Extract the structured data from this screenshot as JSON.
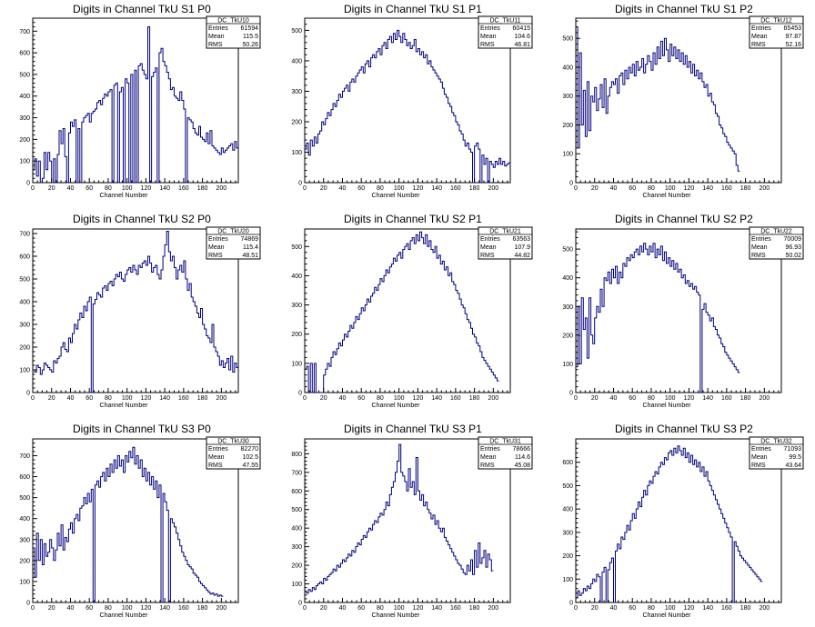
{
  "line_color": "#000080",
  "chart_data": [
    {
      "type": "histogram",
      "title": "Digits in Channel TkU S1 P0",
      "xlabel": "Channel Number",
      "ylabel": "",
      "xlim": [
        0,
        218
      ],
      "ylim": [
        0,
        760
      ],
      "xticks": [
        0,
        20,
        40,
        60,
        80,
        100,
        120,
        140,
        160,
        180,
        200
      ],
      "yticks": [
        0,
        100,
        200,
        300,
        400,
        500,
        600,
        700
      ],
      "stats": {
        "name": "DC_TkU10",
        "entries_label": "Entries",
        "entries": "61594",
        "mean_label": "Mean",
        "mean": "115.5",
        "rms_label": "RMS",
        "rms": "50.26"
      },
      "bin_width": 2,
      "values": [
        60,
        110,
        30,
        100,
        0,
        20,
        140,
        60,
        140,
        100,
        0,
        110,
        0,
        130,
        240,
        180,
        250,
        120,
        0,
        230,
        280,
        260,
        290,
        0,
        250,
        0,
        280,
        300,
        310,
        320,
        280,
        320,
        330,
        340,
        370,
        380,
        360,
        390,
        410,
        400,
        420,
        430,
        0,
        450,
        460,
        0,
        420,
        440,
        0,
        480,
        460,
        0,
        500,
        0,
        520,
        0,
        540,
        550,
        520,
        500,
        480,
        720,
        0,
        490,
        510,
        530,
        0,
        600,
        620,
        560,
        540,
        510,
        480,
        430,
        440,
        400,
        390,
        380,
        420,
        380,
        340,
        0,
        300,
        290,
        280,
        250,
        230,
        220,
        260,
        210,
        200,
        190,
        230,
        180,
        240,
        170,
        160,
        150,
        140,
        130,
        160,
        140,
        150,
        160,
        170,
        180,
        150,
        190,
        160
      ]
    },
    {
      "type": "histogram",
      "title": "Digits in Channel TkU S1 P1",
      "xlabel": "Channel Number",
      "ylabel": "",
      "xlim": [
        0,
        218
      ],
      "ylim": [
        0,
        540
      ],
      "xticks": [
        0,
        20,
        40,
        60,
        80,
        100,
        120,
        140,
        160,
        180,
        200
      ],
      "yticks": [
        0,
        100,
        200,
        300,
        400,
        500
      ],
      "stats": {
        "name": "DC_TkU11",
        "entries_label": "Entries",
        "entries": "60415",
        "mean_label": "Mean",
        "mean": "104.6",
        "rms_label": "RMS",
        "rms": "46.81"
      },
      "bin_width": 2,
      "values": [
        110,
        130,
        90,
        140,
        120,
        150,
        130,
        160,
        170,
        200,
        190,
        210,
        230,
        220,
        240,
        260,
        250,
        270,
        290,
        280,
        300,
        310,
        320,
        300,
        330,
        340,
        330,
        350,
        360,
        370,
        380,
        360,
        390,
        400,
        380,
        410,
        420,
        410,
        430,
        440,
        420,
        450,
        460,
        440,
        470,
        480,
        460,
        490,
        470,
        500,
        480,
        460,
        490,
        470,
        450,
        460,
        440,
        450,
        470,
        430,
        440,
        420,
        430,
        410,
        420,
        390,
        400,
        380,
        370,
        360,
        350,
        340,
        330,
        310,
        290,
        280,
        260,
        250,
        230,
        220,
        200,
        190,
        170,
        160,
        140,
        120,
        130,
        110,
        100,
        0,
        120,
        130,
        110,
        0,
        90,
        60,
        80,
        0,
        70,
        60,
        50,
        70,
        60,
        80,
        60,
        70,
        55,
        60,
        65
      ]
    },
    {
      "type": "histogram",
      "title": "Digits in Channel TkU S1 P2",
      "xlabel": "Channel Number",
      "ylabel": "",
      "xlim": [
        0,
        218
      ],
      "ylim": [
        0,
        570
      ],
      "xticks": [
        0,
        20,
        40,
        60,
        80,
        100,
        120,
        140,
        160,
        180,
        200
      ],
      "yticks": [
        0,
        100,
        200,
        300,
        400,
        500
      ],
      "stats": {
        "name": "DC_TkU12",
        "entries_label": "Entries",
        "entries": "65453",
        "mean_label": "Mean",
        "mean": "97.87",
        "rms_label": "RMS",
        "rms": "52.16"
      },
      "bin_width": 2,
      "values": [
        540,
        120,
        450,
        200,
        320,
        160,
        350,
        180,
        300,
        280,
        330,
        250,
        290,
        340,
        260,
        360,
        240,
        300,
        330,
        350,
        340,
        360,
        310,
        370,
        380,
        340,
        390,
        360,
        400,
        380,
        410,
        370,
        420,
        390,
        400,
        430,
        380,
        410,
        440,
        420,
        390,
        450,
        410,
        470,
        430,
        490,
        440,
        500,
        460,
        420,
        480,
        440,
        470,
        430,
        460,
        420,
        450,
        410,
        440,
        400,
        420,
        380,
        410,
        370,
        390,
        360,
        380,
        350,
        330,
        340,
        300,
        310,
        280,
        270,
        240,
        230,
        200,
        190,
        170,
        160,
        140,
        130,
        120,
        110,
        100,
        60,
        40
      ]
    },
    {
      "type": "histogram",
      "title": "Digits in Channel TkU S2 P0",
      "xlabel": "Channel Number",
      "ylabel": "",
      "xlim": [
        0,
        218
      ],
      "ylim": [
        0,
        720
      ],
      "xticks": [
        0,
        20,
        40,
        60,
        80,
        100,
        120,
        140,
        160,
        180,
        200
      ],
      "yticks": [
        0,
        100,
        200,
        300,
        400,
        500,
        600,
        700
      ],
      "stats": {
        "name": "DC_TkU20",
        "entries_label": "Entries",
        "entries": "74869",
        "mean_label": "Mean",
        "mean": "115.4",
        "rms_label": "RMS",
        "rms": "48.51"
      },
      "bin_width": 2,
      "values": [
        100,
        90,
        120,
        110,
        80,
        100,
        130,
        120,
        110,
        100,
        90,
        140,
        130,
        150,
        160,
        200,
        220,
        190,
        180,
        240,
        220,
        260,
        300,
        280,
        320,
        350,
        330,
        380,
        360,
        400,
        420,
        0,
        390,
        410,
        440,
        430,
        420,
        460,
        470,
        450,
        480,
        490,
        470,
        500,
        520,
        510,
        530,
        500,
        490,
        520,
        540,
        550,
        530,
        560,
        540,
        520,
        560,
        550,
        570,
        580,
        560,
        600,
        570,
        530,
        550,
        560,
        520,
        500,
        540,
        600,
        650,
        710,
        620,
        580,
        600,
        550,
        500,
        540,
        560,
        530,
        580,
        500,
        450,
        480,
        420,
        400,
        380,
        350,
        330,
        370,
        300,
        280,
        250,
        240,
        220,
        300,
        200,
        180,
        160,
        120,
        140,
        110,
        130,
        150,
        100,
        160,
        90,
        130,
        110
      ]
    },
    {
      "type": "histogram",
      "title": "Digits in Channel TkU S2 P1",
      "xlabel": "Channel Number",
      "ylabel": "",
      "xlim": [
        0,
        218
      ],
      "ylim": [
        0,
        560
      ],
      "xticks": [
        0,
        20,
        40,
        60,
        80,
        100,
        120,
        140,
        160,
        180,
        200
      ],
      "yticks": [
        0,
        100,
        200,
        300,
        400,
        500
      ],
      "stats": {
        "name": "DC_TkU21",
        "entries_label": "Entries",
        "entries": "63563",
        "mean_label": "Mean",
        "mean": "107.9",
        "rms_label": "RMS",
        "rms": "44.82"
      },
      "bin_width": 2,
      "values": [
        80,
        90,
        0,
        100,
        0,
        100,
        0,
        0,
        0,
        0,
        60,
        80,
        100,
        90,
        120,
        140,
        130,
        150,
        170,
        160,
        180,
        200,
        190,
        210,
        230,
        220,
        240,
        260,
        250,
        270,
        290,
        280,
        300,
        320,
        310,
        330,
        340,
        360,
        350,
        370,
        390,
        380,
        400,
        420,
        410,
        430,
        440,
        460,
        450,
        470,
        480,
        460,
        490,
        500,
        510,
        490,
        520,
        530,
        510,
        540,
        520,
        550,
        530,
        510,
        540,
        500,
        520,
        490,
        480,
        500,
        460,
        470,
        440,
        450,
        420,
        430,
        400,
        410,
        380,
        370,
        350,
        340,
        320,
        300,
        290,
        270,
        250,
        240,
        220,
        200,
        190,
        170,
        160,
        140,
        120,
        110,
        100,
        90,
        80,
        70,
        60,
        50,
        40
      ]
    },
    {
      "type": "histogram",
      "title": "Digits in Channel TkU S2 P2",
      "xlabel": "Channel Number",
      "ylabel": "",
      "xlim": [
        0,
        218
      ],
      "ylim": [
        0,
        570
      ],
      "xticks": [
        0,
        20,
        40,
        60,
        80,
        100,
        120,
        140,
        160,
        180,
        200
      ],
      "yticks": [
        0,
        100,
        200,
        300,
        400,
        500
      ],
      "stats": {
        "name": "DC_TkU22",
        "entries_label": "Entries",
        "entries": "70009",
        "mean_label": "Mean",
        "mean": "96.93",
        "rms_label": "RMS",
        "rms": "50.02"
      },
      "bin_width": 2,
      "values": [
        90,
        300,
        100,
        330,
        220,
        260,
        120,
        330,
        200,
        170,
        260,
        300,
        280,
        360,
        300,
        400,
        390,
        420,
        380,
        430,
        400,
        440,
        380,
        420,
        400,
        450,
        440,
        470,
        460,
        480,
        470,
        490,
        500,
        480,
        510,
        490,
        520,
        500,
        480,
        510,
        490,
        520,
        470,
        500,
        480,
        510,
        460,
        490,
        450,
        470,
        440,
        460,
        430,
        450,
        420,
        430,
        400,
        410,
        380,
        390,
        370,
        380,
        360,
        370,
        350,
        340,
        0,
        290,
        310,
        280,
        270,
        250,
        260,
        230,
        220,
        200,
        190,
        170,
        160,
        140,
        130,
        120,
        110,
        100,
        90,
        80,
        70
      ]
    },
    {
      "type": "histogram",
      "title": "Digits in Channel TkU S3 P0",
      "xlabel": "Channel Number",
      "ylabel": "",
      "xlim": [
        0,
        218
      ],
      "ylim": [
        0,
        780
      ],
      "xticks": [
        0,
        20,
        40,
        60,
        80,
        100,
        120,
        140,
        160,
        180,
        200
      ],
      "yticks": [
        0,
        100,
        200,
        300,
        400,
        500,
        600,
        700
      ],
      "stats": {
        "name": "DC_TkU30",
        "entries_label": "Entries",
        "entries": "82270",
        "mean_label": "Mean",
        "mean": "102.5",
        "rms_label": "RMS",
        "rms": "47.55"
      },
      "bin_width": 2,
      "values": [
        260,
        120,
        330,
        200,
        300,
        180,
        280,
        220,
        240,
        300,
        260,
        200,
        250,
        330,
        270,
        370,
        250,
        310,
        290,
        350,
        380,
        330,
        400,
        420,
        390,
        450,
        460,
        500,
        470,
        520,
        480,
        540,
        0,
        560,
        580,
        550,
        600,
        620,
        580,
        640,
        600,
        660,
        620,
        680,
        640,
        700,
        650,
        680,
        620,
        700,
        670,
        720,
        690,
        740,
        660,
        700,
        640,
        680,
        600,
        640,
        580,
        620,
        560,
        600,
        540,
        580,
        500,
        560,
        0,
        520,
        480,
        440,
        0,
        400,
        380,
        360,
        330,
        300,
        270,
        240,
        220,
        200,
        180,
        170,
        160,
        140,
        130,
        120,
        100,
        90,
        80,
        70,
        60,
        50,
        40,
        45,
        35,
        40,
        30,
        35,
        30
      ]
    },
    {
      "type": "histogram",
      "title": "Digits in Channel TkU S3 P1",
      "xlabel": "Channel Number",
      "ylabel": "",
      "xlim": [
        0,
        218
      ],
      "ylim": [
        0,
        880
      ],
      "xticks": [
        0,
        20,
        40,
        60,
        80,
        100,
        120,
        140,
        160,
        180,
        200
      ],
      "yticks": [
        0,
        100,
        200,
        300,
        400,
        500,
        600,
        700,
        800
      ],
      "stats": {
        "name": "DC_TkU31",
        "entries_label": "Entries",
        "entries": "78666",
        "mean_label": "Mean",
        "mean": "114.6",
        "rms_label": "RMS",
        "rms": "45.08"
      },
      "bin_width": 2,
      "values": [
        60,
        50,
        70,
        60,
        80,
        70,
        90,
        100,
        110,
        100,
        130,
        120,
        140,
        150,
        160,
        180,
        170,
        200,
        190,
        210,
        230,
        220,
        240,
        260,
        250,
        280,
        270,
        300,
        320,
        310,
        340,
        360,
        350,
        380,
        400,
        390,
        420,
        440,
        430,
        460,
        480,
        470,
        500,
        540,
        520,
        580,
        620,
        650,
        700,
        760,
        850,
        700,
        680,
        650,
        600,
        720,
        620,
        650,
        580,
        780,
        600,
        550,
        580,
        520,
        540,
        500,
        480,
        450,
        470,
        420,
        440,
        400,
        380,
        400,
        350,
        330,
        310,
        290,
        270,
        250,
        230,
        210,
        200,
        180,
        160,
        150,
        200,
        170,
        230,
        150,
        280,
        190,
        320,
        210,
        240,
        280,
        190,
        260,
        230,
        170
      ]
    },
    {
      "type": "histogram",
      "title": "Digits in Channel TkU S3 P2",
      "xlabel": "Channel Number",
      "ylabel": "",
      "xlim": [
        0,
        218
      ],
      "ylim": [
        0,
        700
      ],
      "xticks": [
        0,
        20,
        40,
        60,
        80,
        100,
        120,
        140,
        160,
        180,
        200
      ],
      "yticks": [
        0,
        100,
        200,
        300,
        400,
        500,
        600
      ],
      "stats": {
        "name": "DC_TkU32",
        "entries_label": "Entries",
        "entries": "71093",
        "mean_label": "Mean",
        "mean": "99.5",
        "rms_label": "RMS",
        "rms": "43.64"
      },
      "bin_width": 2,
      "values": [
        20,
        50,
        30,
        40,
        60,
        50,
        70,
        60,
        80,
        100,
        90,
        120,
        110,
        0,
        130,
        150,
        0,
        140,
        170,
        190,
        0,
        220,
        250,
        230,
        280,
        270,
        300,
        330,
        310,
        350,
        380,
        360,
        400,
        430,
        410,
        450,
        480,
        460,
        500,
        520,
        510,
        540,
        560,
        550,
        580,
        600,
        590,
        620,
        610,
        640,
        650,
        630,
        660,
        640,
        670,
        650,
        630,
        660,
        620,
        640,
        600,
        630,
        590,
        610,
        580,
        600,
        560,
        580,
        540,
        560,
        520,
        500,
        480,
        460,
        440,
        420,
        400,
        380,
        360,
        340,
        320,
        300,
        280,
        0,
        260,
        240,
        220,
        200,
        190,
        180,
        170,
        160,
        150,
        140,
        130,
        120,
        110,
        100,
        90
      ]
    }
  ]
}
